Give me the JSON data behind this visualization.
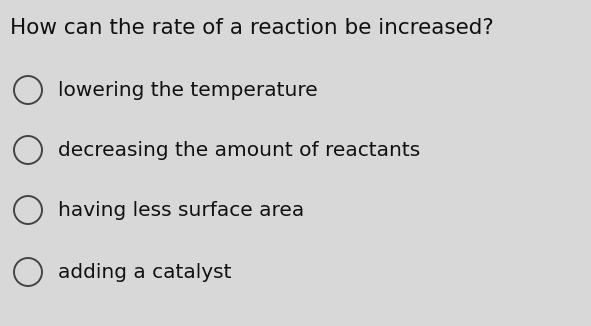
{
  "background_color": "#d8d8d8",
  "title": "How can the rate of a reaction be increased?",
  "title_fontsize": 15.5,
  "title_fontweight": "normal",
  "title_color": "#111111",
  "options": [
    "lowering the temperature",
    "decreasing the amount of reactants",
    "having less surface area",
    "adding a catalyst"
  ],
  "option_fontsize": 14.5,
  "option_color": "#111111",
  "circle_color": "#444444",
  "circle_linewidth": 1.4,
  "fig_width": 5.91,
  "fig_height": 3.26,
  "dpi": 100
}
